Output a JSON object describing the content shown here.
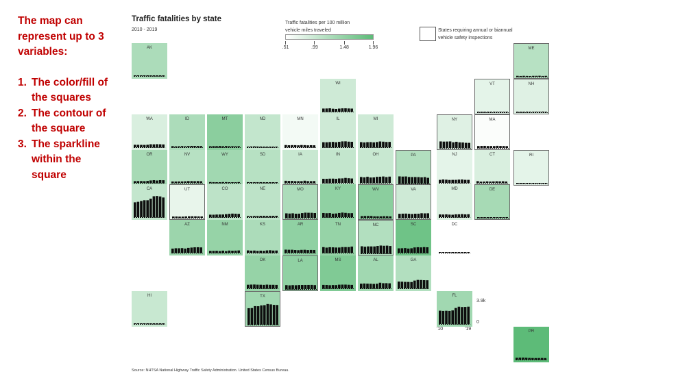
{
  "annotation": {
    "heading": [
      "The map can",
      "represent up to 3",
      "variables:"
    ],
    "items": [
      {
        "num": "1.",
        "lines": [
          "The color/fill of",
          "the squares"
        ]
      },
      {
        "num": "2.",
        "lines": [
          "The contour of",
          "the square"
        ]
      },
      {
        "num": "3.",
        "lines": [
          "The sparkline",
          "within the",
          "square"
        ]
      }
    ]
  },
  "chart_data": {
    "type": "heatmap",
    "title": "Traffic fatalities by state",
    "subtitle": "2010 - 2019",
    "color_legend": {
      "title": "Traffic fatalities per 100 million vehicle miles traveled",
      "title_lines": [
        "Traffic fatalities per 100 million",
        "vehicle miles traveled"
      ],
      "ticks": [
        0.51,
        0.99,
        1.48,
        1.96
      ],
      "tick_labels": [
        ".51",
        ".99",
        "1.48",
        "1.96"
      ],
      "range": [
        0.51,
        1.96
      ],
      "color_low": "#ffffff",
      "color_high": "#5dbb78"
    },
    "outline_legend": {
      "label": "States requiring annual or biannual vehicle safety inspections",
      "label_lines": [
        "States requiring annual or biannual",
        "vehicle safety inspections"
      ]
    },
    "sparkline_axis": {
      "y_max_label": "3.9k",
      "y_min_label": "0",
      "x_start_label": "'10",
      "x_end_label": "'19",
      "y_range": [
        0,
        3900
      ],
      "years": [
        2010,
        2011,
        2012,
        2013,
        2014,
        2015,
        2016,
        2017,
        2018,
        2019
      ]
    },
    "source": "Source: NHTSA National Highway Traffic Safety Administration. United States Census Bureau.",
    "states": [
      {
        "name": "AK",
        "col": 0,
        "row": 0,
        "rate": 1.25,
        "inspection": false,
        "fatalities": [
          56,
          72,
          59,
          51,
          73,
          65,
          84,
          79,
          80,
          67
        ]
      },
      {
        "name": "ME",
        "col": 10,
        "row": 0,
        "rate": 1.15,
        "inspection": true,
        "fatalities": [
          161,
          136,
          164,
          145,
          131,
          156,
          160,
          173,
          137,
          157
        ]
      },
      {
        "name": "WI",
        "col": 5,
        "row": 1,
        "rate": 0.95,
        "inspection": false,
        "fatalities": [
          572,
          582,
          615,
          543,
          506,
          566,
          607,
          613,
          588,
          566
        ]
      },
      {
        "name": "VT",
        "col": 9,
        "row": 1,
        "rate": 0.75,
        "inspection": true,
        "fatalities": [
          71,
          55,
          77,
          69,
          44,
          57,
          62,
          69,
          68,
          47
        ]
      },
      {
        "name": "NH",
        "col": 10,
        "row": 1,
        "rate": 0.8,
        "inspection": true,
        "fatalities": [
          128,
          90,
          108,
          135,
          95,
          114,
          136,
          102,
          147,
          101
        ]
      },
      {
        "name": "WA",
        "col": 0,
        "row": 2,
        "rate": 0.85,
        "inspection": false,
        "fatalities": [
          460,
          454,
          444,
          436,
          462,
          551,
          537,
          565,
          546,
          519
        ]
      },
      {
        "name": "ID",
        "col": 1,
        "row": 2,
        "rate": 1.25,
        "inspection": false,
        "fatalities": [
          209,
          167,
          184,
          214,
          186,
          216,
          253,
          245,
          231,
          224
        ]
      },
      {
        "name": "MT",
        "col": 2,
        "row": 2,
        "rate": 1.55,
        "inspection": false,
        "fatalities": [
          189,
          209,
          205,
          229,
          192,
          224,
          190,
          186,
          182,
          184
        ]
      },
      {
        "name": "ND",
        "col": 3,
        "row": 2,
        "rate": 1.05,
        "inspection": false,
        "fatalities": [
          105,
          148,
          170,
          148,
          135,
          131,
          113,
          116,
          105,
          100
        ]
      },
      {
        "name": "MN",
        "col": 4,
        "row": 2,
        "rate": 0.62,
        "inspection": false,
        "fatalities": [
          411,
          368,
          395,
          387,
          361,
          411,
          392,
          358,
          381,
          364
        ]
      },
      {
        "name": "IL",
        "col": 5,
        "row": 2,
        "rate": 0.95,
        "inspection": false,
        "fatalities": [
          927,
          918,
          956,
          991,
          924,
          998,
          1078,
          1090,
          1031,
          1009
        ]
      },
      {
        "name": "MI",
        "col": 6,
        "row": 2,
        "rate": 0.95,
        "inspection": false,
        "fatalities": [
          942,
          889,
          938,
          951,
          901,
          963,
          1064,
          1028,
          974,
          985
        ]
      },
      {
        "name": "NY",
        "col": 8,
        "row": 2,
        "rate": 0.8,
        "inspection": true,
        "fatalities": [
          1200,
          1169,
          1180,
          1199,
          1041,
          1136,
          1025,
          1006,
          943,
          931
        ]
      },
      {
        "name": "MA",
        "col": 9,
        "row": 2,
        "rate": 0.55,
        "inspection": true,
        "fatalities": [
          347,
          374,
          383,
          351,
          354,
          345,
          389,
          360,
          360,
          334
        ]
      },
      {
        "name": "OR",
        "col": 0,
        "row": 3,
        "rate": 1.3,
        "inspection": false,
        "fatalities": [
          317,
          331,
          337,
          313,
          357,
          447,
          498,
          437,
          506,
          489
        ]
      },
      {
        "name": "NV",
        "col": 1,
        "row": 3,
        "rate": 1.15,
        "inspection": false,
        "fatalities": [
          257,
          246,
          261,
          266,
          291,
          326,
          329,
          311,
          330,
          304
        ]
      },
      {
        "name": "WY",
        "col": 2,
        "row": 3,
        "rate": 1.35,
        "inspection": false,
        "fatalities": [
          155,
          135,
          123,
          87,
          150,
          145,
          112,
          123,
          111,
          147
        ]
      },
      {
        "name": "SD",
        "col": 3,
        "row": 3,
        "rate": 1.15,
        "inspection": false,
        "fatalities": [
          140,
          111,
          133,
          135,
          136,
          133,
          116,
          129,
          130,
          102
        ]
      },
      {
        "name": "IA",
        "col": 4,
        "row": 3,
        "rate": 1.0,
        "inspection": false,
        "fatalities": [
          390,
          360,
          365,
          317,
          322,
          320,
          404,
          330,
          318,
          336
        ]
      },
      {
        "name": "IN",
        "col": 5,
        "row": 3,
        "rate": 1.05,
        "inspection": false,
        "fatalities": [
          754,
          751,
          779,
          784,
          746,
          817,
          829,
          914,
          858,
          809
        ]
      },
      {
        "name": "OH",
        "col": 6,
        "row": 3,
        "rate": 1.0,
        "inspection": false,
        "fatalities": [
          1080,
          1016,
          1123,
          990,
          1006,
          1110,
          1133,
          1179,
          1068,
          1153
        ]
      },
      {
        "name": "PA",
        "col": 7,
        "row": 3,
        "rate": 1.2,
        "inspection": true,
        "fatalities": [
          1324,
          1286,
          1310,
          1208,
          1195,
          1200,
          1188,
          1137,
          1190,
          1059
        ]
      },
      {
        "name": "NJ",
        "col": 8,
        "row": 3,
        "rate": 0.75,
        "inspection": false,
        "fatalities": [
          556,
          627,
          589,
          542,
          556,
          562,
          602,
          624,
          564,
          559
        ]
      },
      {
        "name": "CT",
        "col": 9,
        "row": 3,
        "rate": 0.85,
        "inspection": false,
        "fatalities": [
          320,
          221,
          236,
          276,
          248,
          266,
          294,
          278,
          294,
          249
        ]
      },
      {
        "name": "RI",
        "col": 10,
        "row": 3,
        "rate": 0.75,
        "inspection": true,
        "fatalities": [
          67,
          66,
          64,
          65,
          51,
          45,
          51,
          84,
          59,
          57
        ]
      },
      {
        "name": "CA",
        "col": 0,
        "row": 4,
        "rate": 1.05,
        "inspection": false,
        "fatalities": [
          2720,
          2816,
          2966,
          3104,
          3102,
          3387,
          3837,
          3884,
          3798,
          3606
        ]
      },
      {
        "name": "UT",
        "col": 1,
        "row": 4,
        "rate": 0.72,
        "inspection": true,
        "fatalities": [
          236,
          243,
          217,
          220,
          256,
          276,
          281,
          273,
          260,
          248
        ]
      },
      {
        "name": "CO",
        "col": 2,
        "row": 4,
        "rate": 1.1,
        "inspection": false,
        "fatalities": [
          450,
          447,
          474,
          481,
          488,
          546,
          608,
          648,
          632,
          596
        ]
      },
      {
        "name": "NE",
        "col": 3,
        "row": 4,
        "rate": 1.1,
        "inspection": false,
        "fatalities": [
          190,
          181,
          212,
          211,
          225,
          246,
          218,
          228,
          230,
          248
        ]
      },
      {
        "name": "MO",
        "col": 4,
        "row": 4,
        "rate": 1.25,
        "inspection": true,
        "fatalities": [
          821,
          786,
          826,
          757,
          766,
          869,
          947,
          930,
          921,
          880
        ]
      },
      {
        "name": "KY",
        "col": 5,
        "row": 4,
        "rate": 1.5,
        "inspection": false,
        "fatalities": [
          760,
          720,
          746,
          638,
          672,
          761,
          834,
          782,
          724,
          732
        ]
      },
      {
        "name": "WV",
        "col": 6,
        "row": 4,
        "rate": 1.55,
        "inspection": true,
        "fatalities": [
          315,
          338,
          339,
          332,
          272,
          268,
          269,
          303,
          294,
          260
        ]
      },
      {
        "name": "VA",
        "col": 7,
        "row": 4,
        "rate": 0.95,
        "inspection": true,
        "fatalities": [
          740,
          764,
          777,
          741,
          703,
          753,
          760,
          839,
          819,
          831
        ]
      },
      {
        "name": "MD",
        "col": 8,
        "row": 4,
        "rate": 0.85,
        "inspection": false,
        "fatalities": [
          496,
          485,
          511,
          465,
          443,
          520,
          522,
          558,
          512,
          535
        ]
      },
      {
        "name": "DE",
        "col": 9,
        "row": 4,
        "rate": 1.3,
        "inspection": true,
        "fatalities": [
          103,
          99,
          114,
          101,
          124,
          126,
          119,
          119,
          111,
          132
        ]
      },
      {
        "name": "AZ",
        "col": 1,
        "row": 5,
        "rate": 1.4,
        "inspection": false,
        "fatalities": [
          762,
          825,
          825,
          849,
          770,
          895,
          952,
          1000,
          1010,
          981
        ]
      },
      {
        "name": "NM",
        "col": 2,
        "row": 5,
        "rate": 1.45,
        "inspection": false,
        "fatalities": [
          346,
          350,
          366,
          310,
          386,
          298,
          402,
          379,
          392,
          424
        ]
      },
      {
        "name": "KS",
        "col": 3,
        "row": 5,
        "rate": 1.25,
        "inspection": false,
        "fatalities": [
          431,
          386,
          405,
          350,
          385,
          355,
          429,
          461,
          404,
          411
        ]
      },
      {
        "name": "AR",
        "col": 4,
        "row": 5,
        "rate": 1.5,
        "inspection": false,
        "fatalities": [
          571,
          551,
          552,
          498,
          470,
          531,
          545,
          493,
          516,
          505
        ]
      },
      {
        "name": "TN",
        "col": 5,
        "row": 5,
        "rate": 1.45,
        "inspection": false,
        "fatalities": [
          1032,
          946,
          1015,
          995,
          963,
          962,
          1041,
          1040,
          1041,
          1135
        ]
      },
      {
        "name": "NC",
        "col": 6,
        "row": 5,
        "rate": 1.2,
        "inspection": true,
        "fatalities": [
          1320,
          1230,
          1292,
          1290,
          1284,
          1379,
          1450,
          1412,
          1436,
          1373
        ]
      },
      {
        "name": "SC",
        "col": 7,
        "row": 5,
        "rate": 1.8,
        "inspection": false,
        "fatalities": [
          809,
          828,
          863,
          767,
          824,
          977,
          1015,
          989,
          1036,
          1006
        ]
      },
      {
        "name": "DC",
        "col": 8,
        "row": 5,
        "rate": 0.51,
        "inspection": false,
        "fatalities": [
          24,
          27,
          15,
          20,
          23,
          23,
          28,
          31,
          31,
          23
        ]
      },
      {
        "name": "OK",
        "col": 3,
        "row": 6,
        "rate": 1.45,
        "inspection": false,
        "fatalities": [
          668,
          696,
          708,
          678,
          669,
          643,
          687,
          655,
          655,
          640
        ]
      },
      {
        "name": "LA",
        "col": 4,
        "row": 6,
        "rate": 1.5,
        "inspection": true,
        "fatalities": [
          721,
          680,
          722,
          703,
          740,
          752,
          757,
          760,
          768,
          727
        ]
      },
      {
        "name": "MS",
        "col": 5,
        "row": 6,
        "rate": 1.65,
        "inspection": false,
        "fatalities": [
          641,
          630,
          582,
          613,
          607,
          677,
          690,
          690,
          664,
          643
        ]
      },
      {
        "name": "AL",
        "col": 6,
        "row": 6,
        "rate": 1.35,
        "inspection": false,
        "fatalities": [
          862,
          895,
          865,
          852,
          820,
          849,
          1038,
          948,
          953,
          930
        ]
      },
      {
        "name": "GA",
        "col": 7,
        "row": 6,
        "rate": 1.2,
        "inspection": false,
        "fatalities": [
          1247,
          1226,
          1192,
          1180,
          1164,
          1432,
          1556,
          1540,
          1505,
          1491
        ]
      },
      {
        "name": "HI",
        "col": 0,
        "row": 7,
        "rate": 1.0,
        "inspection": false,
        "fatalities": [
          113,
          100,
          126,
          102,
          95,
          94,
          120,
          107,
          117,
          108
        ]
      },
      {
        "name": "TX",
        "col": 3,
        "row": 7,
        "rate": 1.35,
        "inspection": true,
        "fatalities": [
          3023,
          3054,
          3408,
          3389,
          3536,
          3582,
          3797,
          3727,
          3639,
          3615
        ]
      },
      {
        "name": "FL",
        "col": 8,
        "row": 7,
        "rate": 1.35,
        "inspection": false,
        "fatalities": [
          2444,
          2400,
          2431,
          2403,
          2494,
          2939,
          3176,
          3116,
          3135,
          3183
        ]
      },
      {
        "name": "PR",
        "col": 10,
        "row": 8,
        "rate": 1.96,
        "inspection": false,
        "fatalities": [
          340,
          360,
          370,
          340,
          310,
          290,
          280,
          290,
          300,
          280
        ]
      }
    ]
  }
}
